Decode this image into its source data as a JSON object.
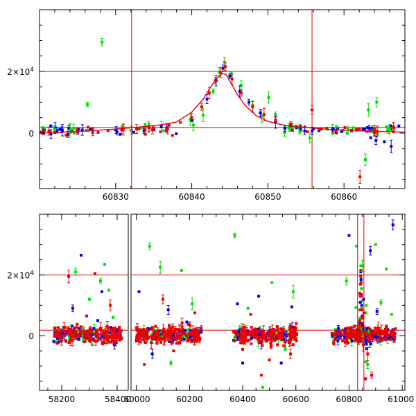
{
  "chart_data": [
    {
      "type": "scatter",
      "title": "",
      "xlabel": "",
      "ylabel": "",
      "xlim": [
        60820,
        60868
      ],
      "ylim": [
        -18000,
        40000
      ],
      "xticks": [
        60830,
        60840,
        60850,
        60860
      ],
      "xtick_labels": [
        "60830",
        "60840",
        "60850",
        "60860"
      ],
      "yticks": [
        0,
        20000
      ],
      "ytick_labels": [
        {
          "base": "0",
          "exp": ""
        },
        {
          "base": "2×10",
          "exp": "4"
        }
      ],
      "hlines": [
        20000,
        1800
      ],
      "vlines": [
        60832.1,
        60855.8
      ],
      "model_curve": {
        "color": "#dd0000",
        "x": [
          60820,
          60825,
          60830,
          60833,
          60836,
          60838,
          60840,
          60841.5,
          60842.5,
          60843.3,
          60844,
          60844.5,
          60845.2,
          60846,
          60847,
          60848.5,
          60850,
          60852,
          60855,
          60858,
          60862,
          60868
        ],
        "y": [
          0,
          500,
          1300,
          1900,
          2700,
          3600,
          6800,
          11000,
          15000,
          17800,
          19300,
          19000,
          16000,
          12500,
          9000,
          5600,
          3800,
          2600,
          1800,
          1200,
          700,
          300
        ]
      },
      "series": [
        {
          "name": "green",
          "color": "#00e000",
          "points": [
            [
              60822,
              1100
            ],
            [
              60824,
              700
            ],
            [
              60826.3,
              9300
            ],
            [
              60828.2,
              29500
            ],
            [
              60832,
              900
            ],
            [
              60836,
              2200
            ],
            [
              60839.8,
              4400
            ],
            [
              60840.2,
              2600
            ],
            [
              60841.5,
              5800
            ],
            [
              60842.8,
              13500
            ],
            [
              60843.6,
              19800
            ],
            [
              60844.3,
              23000
            ],
            [
              60845.2,
              19000
            ],
            [
              60846.5,
              15500
            ],
            [
              60848,
              9000
            ],
            [
              60849.2,
              5500
            ],
            [
              60850.1,
              11500
            ],
            [
              60851,
              6000
            ],
            [
              60852.8,
              1800
            ],
            [
              60854.2,
              400
            ],
            [
              60855.5,
              -1600
            ],
            [
              60857,
              1500
            ],
            [
              60859,
              2100
            ],
            [
              60861.2,
              1700
            ],
            [
              60862.8,
              -8600
            ],
            [
              60863.2,
              7500
            ],
            [
              60864.3,
              10000
            ],
            [
              60866,
              1200
            ]
          ]
        },
        {
          "name": "blue",
          "color": "#0000ee",
          "points": [
            [
              60820.5,
              600
            ],
            [
              60821.5,
              -300
            ],
            [
              60823,
              900
            ],
            [
              60825,
              300
            ],
            [
              60827,
              700
            ],
            [
              60830,
              1000
            ],
            [
              60833,
              1400
            ],
            [
              60836,
              2000
            ],
            [
              60840,
              4000
            ],
            [
              60842,
              11000
            ],
            [
              60843.2,
              17000
            ],
            [
              60844.1,
              21000
            ],
            [
              60845,
              18500
            ],
            [
              60846.3,
              13500
            ],
            [
              60847.5,
              10000
            ],
            [
              60849,
              6500
            ],
            [
              60851,
              3500
            ],
            [
              60853,
              2400
            ],
            [
              60856,
              1400
            ],
            [
              60858.5,
              1100
            ],
            [
              60861,
              700
            ],
            [
              60862.5,
              1200
            ],
            [
              60863.5,
              -1500
            ],
            [
              60864.2,
              -2400
            ],
            [
              60865.3,
              -2800
            ],
            [
              60866.2,
              -4300
            ],
            [
              60867.2,
              2300
            ]
          ]
        },
        {
          "name": "red",
          "color": "#ee0000",
          "points": [
            [
              60820.5,
              800
            ],
            [
              60822,
              200
            ],
            [
              60823.5,
              -700
            ],
            [
              60825,
              300
            ],
            [
              60827,
              500
            ],
            [
              60829,
              800
            ],
            [
              60831,
              1100
            ],
            [
              60833,
              1300
            ],
            [
              60835,
              1700
            ],
            [
              60837,
              2500
            ],
            [
              60838.5,
              3500
            ],
            [
              60840,
              5000
            ],
            [
              60841.3,
              8500
            ],
            [
              60842.3,
              13000
            ],
            [
              60843.1,
              17000
            ],
            [
              60843.8,
              19600
            ],
            [
              60844.4,
              21500
            ],
            [
              60845.3,
              17500
            ],
            [
              60846.5,
              13000
            ],
            [
              60848,
              8500
            ],
            [
              60849.5,
              6000
            ],
            [
              60851,
              4200
            ],
            [
              60853,
              2900
            ],
            [
              60855.8,
              7500
            ],
            [
              60857,
              1300
            ],
            [
              60859,
              1000
            ],
            [
              60861,
              900
            ],
            [
              60862.1,
              -14200
            ],
            [
              60863,
              500
            ],
            [
              60864,
              200
            ],
            [
              60866.5,
              400
            ]
          ]
        }
      ]
    },
    {
      "type": "scatter",
      "title": "",
      "xlabel": "",
      "ylabel": "",
      "broken_x_axis": true,
      "segments": [
        {
          "xlim": [
            58120,
            58440
          ],
          "xticks": [
            58200,
            58400
          ],
          "xtick_labels": [
            "58200",
            "58400"
          ]
        },
        {
          "xlim": [
            59980,
            61010
          ],
          "xticks": [
            60000,
            60200,
            60400,
            60600,
            60800,
            61000
          ],
          "xtick_labels": [
            "60000",
            "60200",
            "60400",
            "60600",
            "60800",
            "61000"
          ]
        }
      ],
      "ylim": [
        -18000,
        40000
      ],
      "yticks": [
        0,
        20000
      ],
      "ytick_labels": [
        {
          "base": "0",
          "exp": ""
        },
        {
          "base": "2×10",
          "exp": "4"
        }
      ],
      "hlines": [
        20000,
        1800
      ],
      "vlines": [
        60832.1,
        60855.8
      ],
      "observing_seasons": [
        [
          58170,
          58420
        ],
        [
          60000,
          60245
        ],
        [
          60365,
          60605
        ],
        [
          60735,
          60975
        ]
      ],
      "outliers": {
        "green": [
          [
            58250,
            21000
          ],
          [
            58300,
            12000
          ],
          [
            58310,
            -3000
          ],
          [
            58340,
            18000
          ],
          [
            58355,
            23500
          ],
          [
            58370,
            15000
          ],
          [
            58385,
            6000
          ],
          [
            60050,
            29500
          ],
          [
            60090,
            22500
          ],
          [
            60130,
            -9000
          ],
          [
            60170,
            21500
          ],
          [
            60210,
            10500
          ],
          [
            60370,
            33000
          ],
          [
            60420,
            9000
          ],
          [
            60475,
            -17000
          ],
          [
            60510,
            17500
          ],
          [
            60560,
            -4500
          ],
          [
            60590,
            14500
          ],
          [
            60790,
            18000
          ],
          [
            60850,
            23000
          ],
          [
            60870,
            -9500
          ],
          [
            60900,
            30000
          ],
          [
            60920,
            11000
          ],
          [
            60940,
            22000
          ],
          [
            60960,
            7000
          ]
        ],
        "blue": [
          [
            58240,
            9000
          ],
          [
            58270,
            26500
          ],
          [
            58330,
            5000
          ],
          [
            58345,
            14500
          ],
          [
            58390,
            -3000
          ],
          [
            60010,
            14500
          ],
          [
            60060,
            -6000
          ],
          [
            60120,
            8500
          ],
          [
            60190,
            4500
          ],
          [
            60380,
            10500
          ],
          [
            60400,
            -9000
          ],
          [
            60460,
            13000
          ],
          [
            60545,
            -9000
          ],
          [
            60585,
            9500
          ],
          [
            60760,
            2500
          ],
          [
            60800,
            33000
          ],
          [
            60855,
            12000
          ],
          [
            60880,
            28000
          ],
          [
            60905,
            8000
          ],
          [
            60965,
            36500
          ]
        ],
        "red": [
          [
            58225,
            19500
          ],
          [
            58290,
            6500
          ],
          [
            58320,
            20500
          ],
          [
            58375,
            10000
          ],
          [
            58395,
            -2000
          ],
          [
            60030,
            -9500
          ],
          [
            60100,
            12000
          ],
          [
            60140,
            -5000
          ],
          [
            60220,
            7500
          ],
          [
            60400,
            -4500
          ],
          [
            60430,
            7000
          ],
          [
            60470,
            -13000
          ],
          [
            60500,
            -8000
          ],
          [
            60530,
            3000
          ],
          [
            60580,
            -6000
          ],
          [
            60840,
            14000
          ],
          [
            60862,
            -14200
          ],
          [
            60870,
            -6000
          ],
          [
            60885,
            -13000
          ],
          [
            60910,
            2500
          ]
        ]
      }
    }
  ]
}
